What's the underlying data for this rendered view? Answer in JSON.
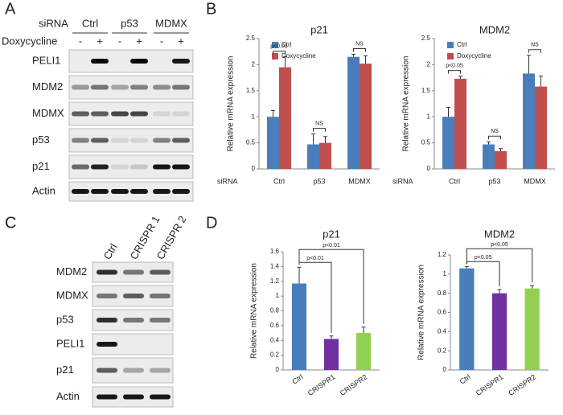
{
  "panel_labels": [
    "A",
    "B",
    "C",
    "D"
  ],
  "blot_a": {
    "header_label": "siRNA",
    "groups": [
      "Ctrl",
      "p53",
      "MDMX"
    ],
    "treatment_label": "Doxycycline",
    "treatment_states": [
      "-",
      "+",
      "-",
      "+",
      "-",
      "+"
    ],
    "rows": [
      "PELI1",
      "MDM2",
      "MDMX",
      "p53",
      "p21",
      "Actin"
    ]
  },
  "blot_c": {
    "lanes": [
      "Ctrl",
      "CRISPR 1",
      "CRISPR 2"
    ],
    "rows": [
      "MDM2",
      "MDMX",
      "p53",
      "PELI1",
      "p21",
      "Actin"
    ]
  },
  "chart_data": [
    {
      "type": "bar",
      "title": "p21",
      "y_label": "Relative mRNA expression",
      "x_label": "siRNA",
      "categories": [
        "Ctrl",
        "p53",
        "MDMX"
      ],
      "series": [
        {
          "name": "Ctrl",
          "color": "#4a7ebb",
          "values": [
            1.0,
            0.47,
            2.15
          ],
          "errors": [
            0.12,
            0.2,
            0.05
          ]
        },
        {
          "name": "Doxycycline",
          "color": "#c0504d",
          "values": [
            1.95,
            0.5,
            2.02
          ],
          "errors": [
            0.2,
            0.12,
            0.15
          ]
        }
      ],
      "ylim": [
        0,
        2.5
      ],
      "yticks": [
        0,
        0.5,
        1,
        1.5,
        2,
        2.5
      ],
      "annotations": [
        "p<0.01",
        "NS",
        "NS"
      ]
    },
    {
      "type": "bar",
      "title": "MDM2",
      "y_label": "Relative mRNA expression",
      "x_label": "siRNA",
      "categories": [
        "Ctrl",
        "p53",
        "MDMX"
      ],
      "series": [
        {
          "name": "Ctrl",
          "color": "#4a7ebb",
          "values": [
            1.0,
            0.47,
            1.83
          ],
          "errors": [
            0.18,
            0.05,
            0.35
          ]
        },
        {
          "name": "Doxycycline",
          "color": "#c0504d",
          "values": [
            1.73,
            0.34,
            1.58
          ],
          "errors": [
            0.05,
            0.05,
            0.2
          ]
        }
      ],
      "ylim": [
        0,
        2.5
      ],
      "yticks": [
        0,
        0.5,
        1,
        1.5,
        2,
        2.5
      ],
      "annotations": [
        "p<0.05",
        "NS",
        "NS"
      ]
    },
    {
      "type": "bar",
      "title": "p21",
      "y_label": "Relative mRNA expression",
      "categories": [
        "Ctrl",
        "CRISPR1",
        "CRISPR2"
      ],
      "values": [
        1.17,
        0.42,
        0.5
      ],
      "errors": [
        0.22,
        0.04,
        0.08
      ],
      "colors": [
        "#4a7ebb",
        "#7030a0",
        "#92d050"
      ],
      "ylim": [
        0,
        1.6
      ],
      "yticks": [
        0,
        0.2,
        0.4,
        0.6,
        0.8,
        1,
        1.2,
        1.4,
        1.6
      ],
      "annotations": [
        "p<0.01",
        "p<0.01"
      ]
    },
    {
      "type": "bar",
      "title": "MDM2",
      "y_label": "Relative mRNA expression",
      "categories": [
        "Ctrl",
        "CRISPR1",
        "CRISPR2"
      ],
      "values": [
        1.06,
        0.8,
        0.85
      ],
      "errors": [
        0.02,
        0.04,
        0.03
      ],
      "colors": [
        "#4a7ebb",
        "#7030a0",
        "#92d050"
      ],
      "ylim": [
        0,
        1.2
      ],
      "yticks": [
        0,
        0.2,
        0.4,
        0.6,
        0.8,
        1,
        1.2
      ],
      "annotations": [
        "p<0.05",
        "p<0.05"
      ]
    }
  ]
}
